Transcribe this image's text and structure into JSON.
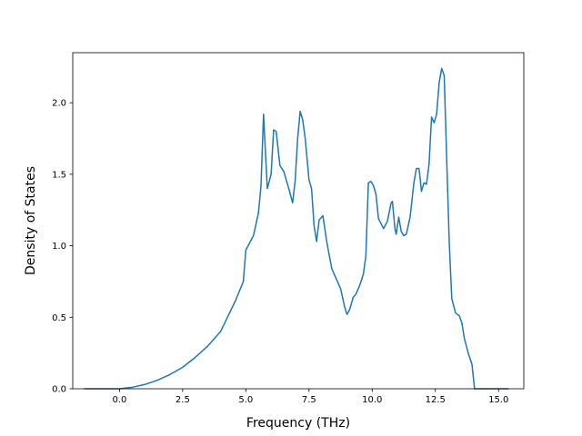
{
  "chart_data": {
    "type": "line",
    "title": "",
    "xlabel": "Frequency (THz)",
    "ylabel": "Density of States",
    "xlim": [
      -1.85,
      16.0
    ],
    "ylim": [
      0.0,
      2.35
    ],
    "xticks": [
      0.0,
      2.5,
      5.0,
      7.5,
      10.0,
      12.5,
      15.0
    ],
    "xtick_labels": [
      "0.0",
      "2.5",
      "5.0",
      "7.5",
      "10.0",
      "12.5",
      "15.0"
    ],
    "yticks": [
      0.0,
      0.5,
      1.0,
      1.5,
      2.0
    ],
    "ytick_labels": [
      "0.0",
      "0.5",
      "1.0",
      "1.5",
      "2.0"
    ],
    "grid": false,
    "series": [
      {
        "color": "#1f77b4",
        "x": [
          -1.4,
          -0.5,
          0.0,
          0.5,
          1.0,
          1.5,
          2.0,
          2.5,
          3.0,
          3.5,
          4.0,
          4.3,
          4.6,
          4.9,
          5.0,
          5.3,
          5.5,
          5.6,
          5.7,
          5.85,
          6.0,
          6.1,
          6.2,
          6.35,
          6.5,
          6.7,
          6.85,
          6.95,
          7.05,
          7.15,
          7.25,
          7.35,
          7.5,
          7.6,
          7.7,
          7.8,
          7.9,
          8.05,
          8.2,
          8.4,
          8.55,
          8.75,
          8.9,
          9.0,
          9.1,
          9.25,
          9.35,
          9.5,
          9.65,
          9.75,
          9.85,
          9.95,
          10.05,
          10.15,
          10.25,
          10.45,
          10.6,
          10.75,
          10.8,
          10.9,
          10.95,
          11.05,
          11.15,
          11.25,
          11.35,
          11.5,
          11.65,
          11.75,
          11.85,
          11.9,
          11.95,
          12.05,
          12.15,
          12.25,
          12.35,
          12.45,
          12.55,
          12.65,
          12.75,
          12.85,
          12.95,
          13.05,
          13.15,
          13.3,
          13.45,
          13.55,
          13.65,
          13.8,
          13.95,
          14.05,
          14.3,
          14.6,
          15.4
        ],
        "y": [
          0.0,
          0.0,
          0.0,
          0.01,
          0.03,
          0.06,
          0.1,
          0.15,
          0.22,
          0.3,
          0.4,
          0.51,
          0.62,
          0.75,
          0.97,
          1.07,
          1.23,
          1.42,
          1.92,
          1.4,
          1.5,
          1.81,
          1.8,
          1.56,
          1.52,
          1.4,
          1.3,
          1.45,
          1.75,
          1.94,
          1.88,
          1.75,
          1.46,
          1.4,
          1.14,
          1.03,
          1.18,
          1.21,
          1.03,
          0.84,
          0.78,
          0.7,
          0.58,
          0.52,
          0.55,
          0.64,
          0.66,
          0.72,
          0.8,
          0.93,
          1.44,
          1.45,
          1.42,
          1.36,
          1.19,
          1.12,
          1.17,
          1.3,
          1.31,
          1.12,
          1.08,
          1.2,
          1.1,
          1.07,
          1.08,
          1.2,
          1.44,
          1.54,
          1.54,
          1.47,
          1.38,
          1.44,
          1.43,
          1.57,
          1.9,
          1.86,
          1.92,
          2.14,
          2.24,
          2.19,
          1.6,
          1.02,
          0.63,
          0.53,
          0.51,
          0.46,
          0.35,
          0.25,
          0.17,
          0.0,
          0.0,
          0.0,
          0.0
        ]
      }
    ]
  }
}
